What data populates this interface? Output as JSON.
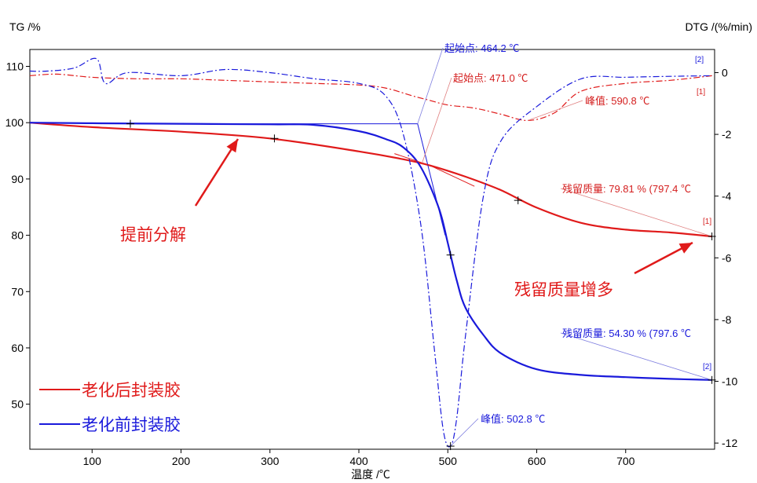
{
  "chart_data": {
    "type": "line",
    "y_left_title": "TG /%",
    "y_right_title": "DTG /(%/min)",
    "x_title": "温度 /℃",
    "xlim": [
      30,
      800
    ],
    "ylim_left": [
      42,
      113
    ],
    "ylim_right": [
      -12.2,
      0.75
    ],
    "x_ticks": [
      100,
      200,
      300,
      400,
      500,
      600,
      700
    ],
    "y_left_ticks": [
      50,
      60,
      70,
      80,
      90,
      100,
      110
    ],
    "y_right_ticks": [
      0,
      -2,
      -4,
      -6,
      -8,
      -10,
      -12
    ],
    "colors": {
      "red": "#e01a1a",
      "blue": "#1a1adb"
    },
    "series": [
      {
        "name": "老化后封装胶",
        "marker": "[1]",
        "axis": "left",
        "style": "solid",
        "color": "#e01a1a",
        "x": [
          30,
          100,
          200,
          300,
          400,
          450,
          480,
          520,
          560,
          600,
          650,
          700,
          750,
          797
        ],
        "y": [
          100,
          99.2,
          98.4,
          97.2,
          94.9,
          93.5,
          92.4,
          90.4,
          88.0,
          84.9,
          82.2,
          81.0,
          80.5,
          79.8
        ]
      },
      {
        "name": "老化后封装胶 DTG",
        "marker": "[1]",
        "axis": "right",
        "style": "dashdot",
        "color": "#e01a1a",
        "x": [
          30,
          60,
          100,
          150,
          200,
          250,
          300,
          350,
          400,
          430,
          460,
          480,
          500,
          530,
          560,
          590,
          620,
          650,
          700,
          750,
          797
        ],
        "y": [
          -0.1,
          -0.05,
          -0.15,
          -0.2,
          -0.2,
          -0.25,
          -0.3,
          -0.35,
          -0.4,
          -0.5,
          -0.75,
          -0.9,
          -1.05,
          -1.15,
          -1.35,
          -1.55,
          -1.3,
          -0.6,
          -0.35,
          -0.25,
          -0.1
        ]
      },
      {
        "name": "老化前封装胶",
        "marker": "[2]",
        "axis": "left",
        "style": "solid",
        "color": "#1a1adb",
        "x": [
          30,
          100,
          200,
          300,
          350,
          400,
          430,
          450,
          470,
          490,
          500,
          510,
          520,
          540,
          560,
          600,
          650,
          700,
          750,
          797
        ],
        "y": [
          100,
          99.9,
          99.8,
          99.7,
          99.6,
          98.5,
          97.1,
          95.6,
          92.0,
          84.8,
          78.6,
          72.0,
          67.1,
          62.3,
          59.0,
          56.2,
          55.2,
          54.8,
          54.5,
          54.3
        ]
      },
      {
        "name": "老化前封装胶 DTG",
        "marker": "[2]",
        "axis": "right",
        "style": "dashdot",
        "color": "#1a1adb",
        "x": [
          30,
          50,
          80,
          105,
          115,
          140,
          200,
          250,
          300,
          350,
          400,
          430,
          450,
          470,
          485,
          495,
          503,
          510,
          520,
          540,
          560,
          600,
          650,
          700,
          750,
          797
        ],
        "y": [
          0.05,
          0.05,
          0.15,
          0.45,
          -0.35,
          0.0,
          -0.1,
          0.1,
          0.0,
          -0.2,
          -0.35,
          -0.75,
          -2.0,
          -5.0,
          -9.0,
          -11.6,
          -12.1,
          -11.2,
          -8.5,
          -4.0,
          -2.2,
          -1.1,
          -0.2,
          -0.15,
          -0.12,
          -0.1
        ]
      }
    ],
    "annotations": {
      "onset_blue": "起始点: 464.2 ℃",
      "onset_red": "起始点: 471.0 ℃",
      "peak_red": "峰值: 590.8 ℃",
      "peak_blue": "峰值: 502.8 ℃",
      "residual_red": "残留质量: 79.81 % (797.4 ℃",
      "residual_blue": "残留质量: 54.30 % (797.6 ℃",
      "note_left": "提前分解",
      "note_right": "残留质量增多",
      "marker1": "[1]",
      "marker2": "[2]"
    },
    "legend": [
      {
        "label": "老化后封装胶",
        "color": "#e01a1a"
      },
      {
        "label": "老化前封装胶",
        "color": "#1a1adb"
      }
    ],
    "legend_position": "bottom-left"
  }
}
